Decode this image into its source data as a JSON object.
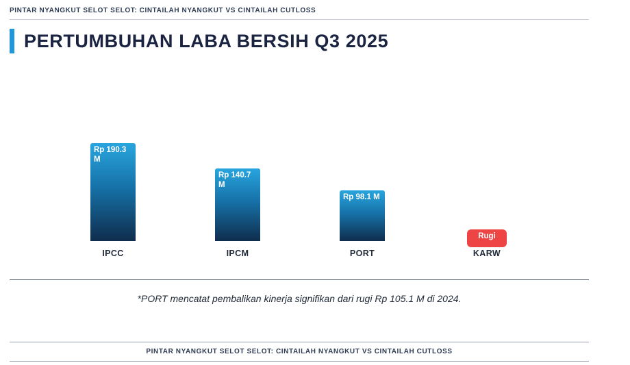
{
  "header": {
    "tagline": "PINTAR NYANGKUT SELOT SELOT: CINTAILAH NYANGKUT VS CINTAILAH CUTLOSS"
  },
  "title": "PERTUMBUHAN LABA BERSIH Q3 2025",
  "chart_data": {
    "type": "bar",
    "title": "PERTUMBUHAN LABA BERSIH Q3 2025",
    "categories": [
      "IPCC",
      "IPCM",
      "PORT",
      "KARW"
    ],
    "values": [
      190.3,
      140.7,
      98.1,
      null
    ],
    "bar_labels": [
      "Rp 190.3 M",
      "Rp 140.7 M",
      "Rp 98.1 M",
      "Rugi"
    ],
    "unit": "Rp miliar (M)",
    "loss_category": "KARW",
    "loss_label": "Rugi",
    "legend": false,
    "grid": false,
    "bar_color_gradient": [
      "#29a5de",
      "#0f2d4d"
    ],
    "loss_color": "#ef4444"
  },
  "footnote": "*PORT mencatat pembalikan kinerja signifikan dari rugi Rp 105.1 M di 2024.",
  "footer": {
    "tagline": "PINTAR NYANGKUT SELOT SELOT: CINTAILAH NYANGKUT VS CINTAILAH CUTLOSS"
  },
  "colors": {
    "accent": "#2196d9",
    "title": "#1a2340",
    "bar_top": "#29a5de",
    "bar_bottom": "#0f2d4d",
    "loss": "#ef4444"
  }
}
